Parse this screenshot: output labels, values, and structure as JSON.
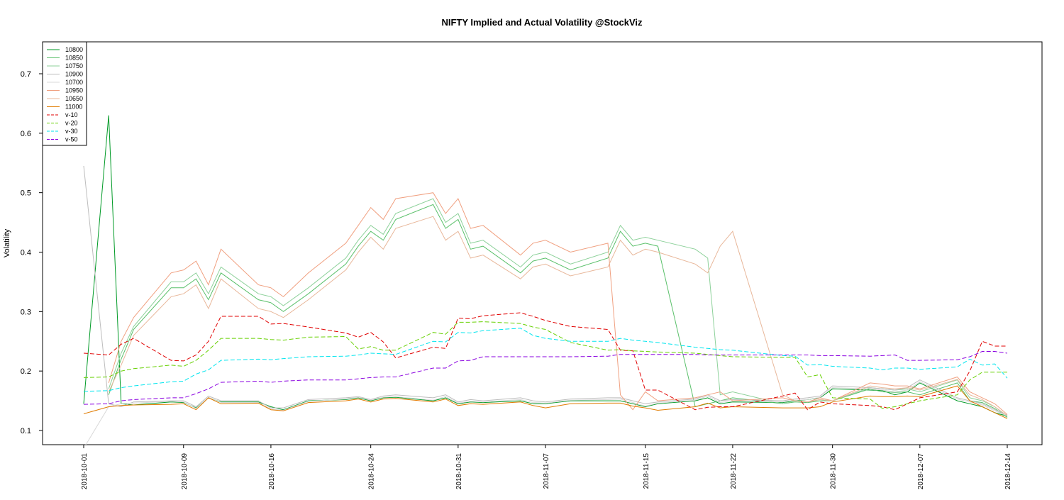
{
  "chart_data": {
    "type": "line",
    "title": "NIFTY Implied and Actual Volatility @StockViz",
    "xlabel": "",
    "ylabel": "Volatility",
    "xlim": [
      "2018-10-01",
      "2018-12-14"
    ],
    "ylim": [
      0.08,
      0.75
    ],
    "grid": false,
    "legend_position": "top-left",
    "yticks": [
      0.1,
      0.2,
      0.3,
      0.4,
      0.5,
      0.6,
      0.7
    ],
    "ytick_labels": [
      "0.1",
      "0.2",
      "0.3",
      "0.4",
      "0.5",
      "0.6",
      "0.7"
    ],
    "xticks": [
      "2018-10-01",
      "2018-10-09",
      "2018-10-16",
      "2018-10-24",
      "2018-10-31",
      "2018-11-07",
      "2018-11-15",
      "2018-11-22",
      "2018-11-30",
      "2018-12-07",
      "2018-12-14"
    ],
    "x": [
      "2018-10-01",
      "2018-10-03",
      "2018-10-04",
      "2018-10-05",
      "2018-10-08",
      "2018-10-09",
      "2018-10-10",
      "2018-10-11",
      "2018-10-12",
      "2018-10-15",
      "2018-10-16",
      "2018-10-17",
      "2018-10-19",
      "2018-10-22",
      "2018-10-23",
      "2018-10-24",
      "2018-10-25",
      "2018-10-26",
      "2018-10-29",
      "2018-10-30",
      "2018-10-31",
      "2018-11-01",
      "2018-11-02",
      "2018-11-05",
      "2018-11-06",
      "2018-11-07",
      "2018-11-09",
      "2018-11-12",
      "2018-11-13",
      "2018-11-14",
      "2018-11-15",
      "2018-11-16",
      "2018-11-19",
      "2018-11-20",
      "2018-11-21",
      "2018-11-22",
      "2018-11-26",
      "2018-11-27",
      "2018-11-28",
      "2018-11-29",
      "2018-11-30",
      "2018-12-03",
      "2018-12-04",
      "2018-12-05",
      "2018-12-06",
      "2018-12-07",
      "2018-12-10",
      "2018-12-11",
      "2018-12-12",
      "2018-12-13",
      "2018-12-14"
    ],
    "series": [
      {
        "name": "10800",
        "color": "#009a26",
        "dash": "",
        "values": [
          0.145,
          0.63,
          0.145,
          0.143,
          0.148,
          0.147,
          0.138,
          0.155,
          0.148,
          0.148,
          0.14,
          0.135,
          0.15,
          0.152,
          0.155,
          0.15,
          0.155,
          0.156,
          0.15,
          0.155,
          0.145,
          0.148,
          0.147,
          0.15,
          0.145,
          0.145,
          0.15,
          0.15,
          0.15,
          0.145,
          0.14,
          0.145,
          0.15,
          0.155,
          0.145,
          0.148,
          0.147,
          0.15,
          0.152,
          0.155,
          0.17,
          0.168,
          0.167,
          0.16,
          0.165,
          0.18,
          0.15,
          0.145,
          0.14,
          0.13,
          0.124
        ]
      },
      {
        "name": "10850",
        "color": "#5ac06a",
        "dash": "",
        "values": [
          null,
          0.16,
          0.22,
          0.27,
          0.34,
          0.34,
          0.355,
          0.32,
          0.365,
          0.32,
          0.315,
          0.3,
          0.33,
          0.38,
          0.41,
          0.435,
          0.42,
          0.455,
          0.48,
          0.44,
          0.455,
          0.405,
          0.41,
          0.365,
          0.385,
          0.39,
          0.37,
          0.39,
          0.435,
          0.41,
          0.415,
          0.41,
          0.14,
          0.145,
          0.15,
          0.155,
          0.145,
          0.148,
          0.147,
          0.15,
          0.15,
          0.17,
          0.165,
          0.164,
          0.165,
          0.16,
          0.18,
          0.15,
          0.147,
          0.137,
          0.122
        ]
      },
      {
        "name": "10750",
        "color": "#8dd19a",
        "dash": "",
        "values": [
          null,
          0.17,
          0.23,
          0.275,
          0.35,
          0.35,
          0.365,
          0.33,
          0.375,
          0.33,
          0.325,
          0.31,
          0.34,
          0.39,
          0.42,
          0.445,
          0.43,
          0.465,
          0.49,
          0.45,
          0.465,
          0.415,
          0.42,
          0.375,
          0.395,
          0.4,
          0.38,
          0.4,
          0.445,
          0.42,
          0.425,
          0.42,
          0.405,
          0.39,
          0.16,
          0.165,
          0.145,
          0.15,
          0.148,
          0.152,
          0.15,
          0.172,
          0.17,
          0.168,
          0.17,
          0.165,
          0.185,
          0.155,
          0.15,
          0.14,
          0.123
        ]
      },
      {
        "name": "10900",
        "color": "#bdbdbd",
        "dash": "",
        "values": [
          0.545,
          0.145,
          0.14,
          0.148,
          0.15,
          0.15,
          0.14,
          0.158,
          0.15,
          0.15,
          0.138,
          0.138,
          0.152,
          0.155,
          0.157,
          0.152,
          0.158,
          0.16,
          0.155,
          0.16,
          0.148,
          0.152,
          0.15,
          0.155,
          0.15,
          0.148,
          0.153,
          0.155,
          0.155,
          0.15,
          0.145,
          0.148,
          0.153,
          0.16,
          0.15,
          0.152,
          0.15,
          0.153,
          0.155,
          0.158,
          0.175,
          0.172,
          0.17,
          0.168,
          0.172,
          0.185,
          0.155,
          0.15,
          0.145,
          0.135,
          0.126
        ]
      },
      {
        "name": "10700",
        "color": "#d9d9d9",
        "dash": "",
        "values": [
          0.07,
          0.14,
          0.145,
          0.146,
          0.149,
          0.148,
          0.137,
          0.156,
          0.147,
          0.147,
          0.136,
          0.134,
          0.149,
          0.153,
          0.156,
          0.151,
          0.156,
          0.157,
          0.151,
          0.157,
          0.146,
          0.149,
          0.148,
          0.152,
          0.147,
          0.146,
          0.151,
          0.152,
          0.153,
          0.147,
          0.141,
          0.146,
          0.151,
          0.158,
          0.147,
          0.15,
          0.148,
          0.151,
          0.152,
          0.156,
          0.172,
          0.17,
          0.168,
          0.165,
          0.168,
          0.182,
          0.153,
          0.148,
          0.143,
          0.133,
          0.125
        ]
      },
      {
        "name": "10950",
        "color": "#f0a080",
        "dash": "",
        "values": [
          null,
          0.18,
          0.25,
          0.29,
          0.365,
          0.37,
          0.385,
          0.345,
          0.405,
          0.345,
          0.34,
          0.325,
          0.365,
          0.415,
          0.445,
          0.475,
          0.455,
          0.49,
          0.5,
          0.465,
          0.49,
          0.44,
          0.445,
          0.395,
          0.415,
          0.42,
          0.4,
          0.415,
          0.16,
          0.135,
          0.165,
          0.15,
          0.155,
          0.16,
          0.165,
          0.15,
          0.155,
          0.15,
          0.148,
          0.155,
          0.15,
          0.18,
          0.178,
          0.175,
          0.175,
          0.17,
          0.19,
          0.165,
          0.155,
          0.145,
          0.127
        ]
      },
      {
        "name": "10650",
        "color": "#e8b79a",
        "dash": "",
        "values": [
          null,
          0.165,
          0.21,
          0.26,
          0.325,
          0.33,
          0.345,
          0.305,
          0.355,
          0.305,
          0.3,
          0.29,
          0.32,
          0.37,
          0.4,
          0.425,
          0.405,
          0.44,
          0.46,
          0.42,
          0.435,
          0.39,
          0.395,
          0.355,
          0.375,
          0.38,
          0.36,
          0.375,
          0.42,
          0.395,
          0.405,
          0.4,
          0.38,
          0.365,
          0.41,
          0.435,
          0.16,
          0.15,
          0.148,
          0.152,
          0.15,
          0.175,
          0.172,
          0.17,
          0.172,
          0.168,
          0.186,
          0.16,
          0.152,
          0.14,
          0.125
        ]
      },
      {
        "name": "11000",
        "color": "#e07b00",
        "dash": "",
        "values": [
          0.128,
          0.14,
          0.142,
          0.143,
          0.144,
          0.145,
          0.135,
          0.155,
          0.145,
          0.146,
          0.135,
          0.133,
          0.147,
          0.15,
          0.153,
          0.148,
          0.153,
          0.154,
          0.148,
          0.153,
          0.142,
          0.145,
          0.144,
          0.148,
          0.142,
          0.138,
          0.145,
          0.146,
          0.146,
          0.141,
          0.138,
          0.134,
          0.14,
          0.146,
          0.138,
          0.14,
          0.138,
          0.138,
          0.138,
          0.14,
          0.148,
          0.158,
          0.157,
          0.157,
          0.158,
          0.157,
          0.175,
          0.15,
          0.14,
          0.13,
          0.12
        ]
      },
      {
        "name": "v-10",
        "color": "#e00000",
        "dash": "6,3",
        "values": [
          0.23,
          0.227,
          0.245,
          0.255,
          0.218,
          0.217,
          0.227,
          0.25,
          0.292,
          0.292,
          0.279,
          0.28,
          0.274,
          0.264,
          0.257,
          0.265,
          0.249,
          0.222,
          0.24,
          0.238,
          0.289,
          0.288,
          0.293,
          0.298,
          0.292,
          0.285,
          0.275,
          0.27,
          0.235,
          0.234,
          0.168,
          0.168,
          0.135,
          0.139,
          0.14,
          0.14,
          0.158,
          0.163,
          0.135,
          0.148,
          0.145,
          0.142,
          0.14,
          0.135,
          0.145,
          0.155,
          0.165,
          0.2,
          0.25,
          0.242,
          0.242
        ]
      },
      {
        "name": "v-20",
        "color": "#66d000",
        "dash": "6,3",
        "values": [
          0.189,
          0.19,
          0.2,
          0.204,
          0.21,
          0.208,
          0.218,
          0.235,
          0.255,
          0.255,
          0.253,
          0.252,
          0.257,
          0.258,
          0.237,
          0.241,
          0.235,
          0.235,
          0.265,
          0.262,
          0.282,
          0.282,
          0.283,
          0.28,
          0.274,
          0.27,
          0.248,
          0.235,
          0.236,
          0.234,
          0.233,
          0.232,
          0.23,
          0.228,
          0.226,
          0.224,
          0.223,
          0.223,
          0.19,
          0.194,
          0.155,
          0.153,
          0.137,
          0.14,
          0.145,
          0.15,
          0.16,
          0.185,
          0.198,
          0.198,
          0.198
        ]
      },
      {
        "name": "v-30",
        "color": "#00e5ee",
        "dash": "6,3",
        "values": [
          0.166,
          0.167,
          0.172,
          0.175,
          0.182,
          0.183,
          0.195,
          0.202,
          0.218,
          0.22,
          0.219,
          0.221,
          0.224,
          0.225,
          0.227,
          0.23,
          0.229,
          0.228,
          0.25,
          0.249,
          0.265,
          0.264,
          0.268,
          0.272,
          0.26,
          0.255,
          0.25,
          0.25,
          0.255,
          0.252,
          0.25,
          0.248,
          0.24,
          0.238,
          0.236,
          0.235,
          0.226,
          0.225,
          0.21,
          0.211,
          0.208,
          0.205,
          0.202,
          0.205,
          0.205,
          0.203,
          0.207,
          0.22,
          0.21,
          0.212,
          0.188
        ]
      },
      {
        "name": "v-50",
        "color": "#8a00e0",
        "dash": "6,3",
        "values": [
          0.144,
          0.145,
          0.15,
          0.152,
          0.155,
          0.155,
          0.162,
          0.17,
          0.181,
          0.183,
          0.181,
          0.183,
          0.185,
          0.185,
          0.187,
          0.189,
          0.19,
          0.19,
          0.205,
          0.205,
          0.217,
          0.218,
          0.224,
          0.224,
          0.224,
          0.224,
          0.224,
          0.225,
          0.228,
          0.228,
          0.228,
          0.228,
          0.228,
          0.227,
          0.227,
          0.227,
          0.227,
          0.227,
          0.227,
          0.226,
          0.226,
          0.225,
          0.226,
          0.227,
          0.218,
          0.218,
          0.219,
          0.224,
          0.233,
          0.233,
          0.23
        ]
      }
    ]
  }
}
